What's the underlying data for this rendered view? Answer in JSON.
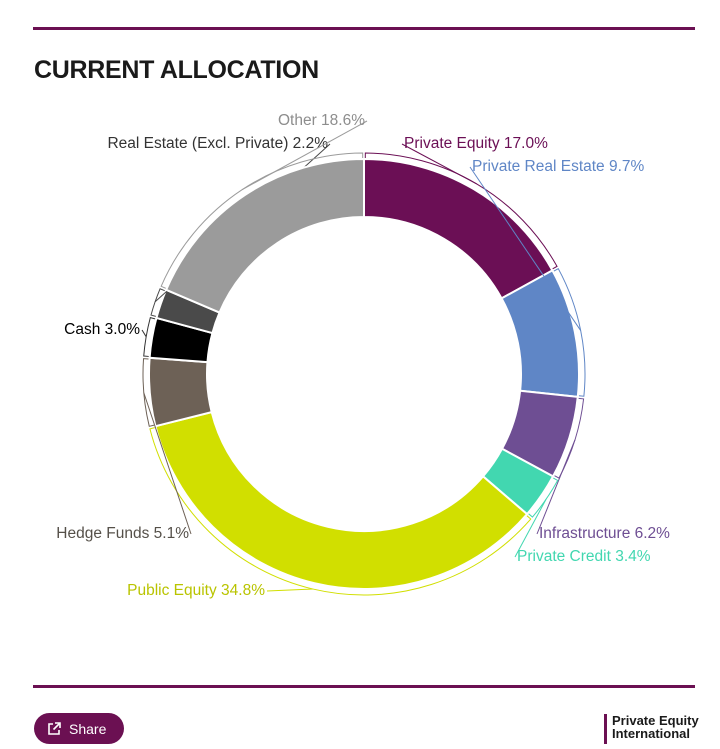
{
  "header": {
    "title": "CURRENT ALLOCATION"
  },
  "chart_data": {
    "type": "pie",
    "variant": "donut",
    "title": "CURRENT ALLOCATION",
    "unit": "%",
    "slices": [
      {
        "label": "Private Equity",
        "value": 17.0,
        "display": "Private Equity 17.0%",
        "color": "#6b0f55"
      },
      {
        "label": "Private Real Estate",
        "value": 9.7,
        "display": "Private Real Estate 9.7%",
        "color": "#5f86c6"
      },
      {
        "label": "Infrastructure",
        "value": 6.2,
        "display": "Infrastructure 6.2%",
        "color": "#6e4e93"
      },
      {
        "label": "Private Credit",
        "value": 3.4,
        "display": "Private Credit 3.4%",
        "color": "#42d7b0"
      },
      {
        "label": "Public Equity",
        "value": 34.8,
        "display": "Public Equity 34.8%",
        "color": "#d1df00"
      },
      {
        "label": "Hedge Funds",
        "value": 5.1,
        "display": "Hedge Funds 5.1%",
        "color": "#6d6156"
      },
      {
        "label": "Cash",
        "value": 3.0,
        "display": "Cash 3.0%",
        "color": "#000000"
      },
      {
        "label": "Real Estate (Excl. Private)",
        "value": 2.2,
        "display": "Real Estate (Excl. Private) 2.2%",
        "color": "#4a4a4a"
      },
      {
        "label": "Other",
        "value": 18.6,
        "display": "Other 18.6%",
        "color": "#9b9b9b"
      }
    ]
  },
  "footer": {
    "share_label": "Share",
    "brand_line1": "Private Equity",
    "brand_line2": "International"
  },
  "colors": {
    "accent": "#6b1052",
    "label_text": "#333333"
  }
}
